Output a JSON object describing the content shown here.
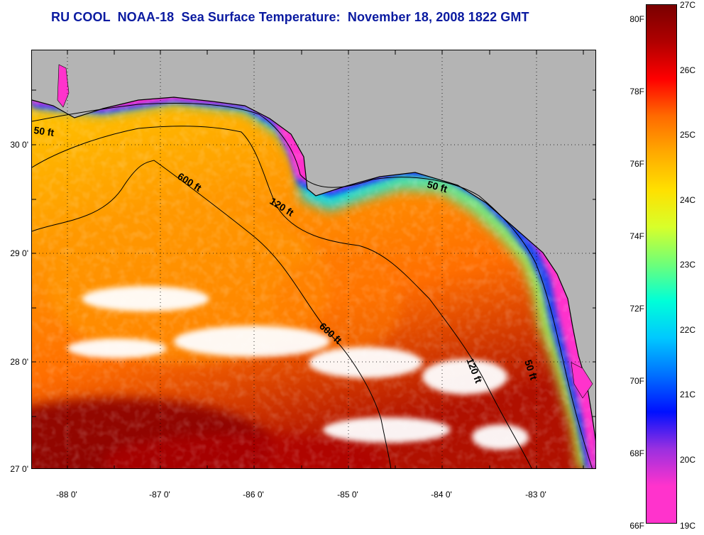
{
  "title": "RU COOL  NOAA-18  Sea Surface Temperature:  November 18, 2008 1822 GMT",
  "map": {
    "lat_labels": [
      "30 0'",
      "29 0'",
      "28 0'",
      "27 0'"
    ],
    "lon_labels": [
      "-88 0'",
      "-87 0'",
      "-86 0'",
      "-85 0'",
      "-84 0'",
      "-83 0'"
    ],
    "contour_labels": [
      "50 ft",
      "600 ft",
      "120 ft",
      "50 ft",
      "600 ft",
      "120 ft",
      "50 ft"
    ],
    "colors": {
      "land": "#b4b4b4",
      "cloud": "#ffffff",
      "coldest": "#ff33cc",
      "warmest": "#8b0000",
      "grid": "#000000"
    }
  },
  "colorbar": {
    "fahrenheit": [
      "80F",
      "78F",
      "76F",
      "74F",
      "72F",
      "70F",
      "68F",
      "66F"
    ],
    "celsius": [
      "27C",
      "26C",
      "25C",
      "24C",
      "23C",
      "22C",
      "21C",
      "20C",
      "19C"
    ],
    "stops": [
      "#7a0000",
      "#b00000",
      "#ff0000",
      "#ff6a00",
      "#ffaa00",
      "#ffe000",
      "#d8ff2a",
      "#6fff78",
      "#00ffd8",
      "#00c8ff",
      "#0070ff",
      "#0010ff",
      "#9a30e0",
      "#ff33cc",
      "#ff33cc"
    ]
  }
}
